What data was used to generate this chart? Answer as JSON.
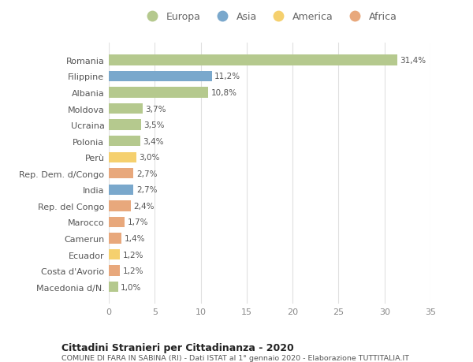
{
  "countries": [
    "Romania",
    "Filippine",
    "Albania",
    "Moldova",
    "Ucraina",
    "Polonia",
    "Perù",
    "Rep. Dem. d/Congo",
    "India",
    "Rep. del Congo",
    "Marocco",
    "Camerun",
    "Ecuador",
    "Costa d'Avorio",
    "Macedonia d/N."
  ],
  "values": [
    31.4,
    11.2,
    10.8,
    3.7,
    3.5,
    3.4,
    3.0,
    2.7,
    2.7,
    2.4,
    1.7,
    1.4,
    1.2,
    1.2,
    1.0
  ],
  "labels": [
    "31,4%",
    "11,2%",
    "10,8%",
    "3,7%",
    "3,5%",
    "3,4%",
    "3,0%",
    "2,7%",
    "2,7%",
    "2,4%",
    "1,7%",
    "1,4%",
    "1,2%",
    "1,2%",
    "1,0%"
  ],
  "continents": [
    "Europa",
    "Asia",
    "Europa",
    "Europa",
    "Europa",
    "Europa",
    "America",
    "Africa",
    "Asia",
    "Africa",
    "Africa",
    "Africa",
    "America",
    "Africa",
    "Europa"
  ],
  "colors": {
    "Europa": "#b5c98e",
    "Asia": "#7aa8cc",
    "America": "#f5d06e",
    "Africa": "#e8a87c"
  },
  "legend_order": [
    "Europa",
    "Asia",
    "America",
    "Africa"
  ],
  "title": "Cittadini Stranieri per Cittadinanza - 2020",
  "subtitle": "COMUNE DI FARA IN SABINA (RI) - Dati ISTAT al 1° gennaio 2020 - Elaborazione TUTTITALIA.IT",
  "xlim": [
    0,
    35
  ],
  "xticks": [
    0,
    5,
    10,
    15,
    20,
    25,
    30,
    35
  ],
  "bg_color": "#ffffff",
  "grid_color": "#e0e0e0"
}
